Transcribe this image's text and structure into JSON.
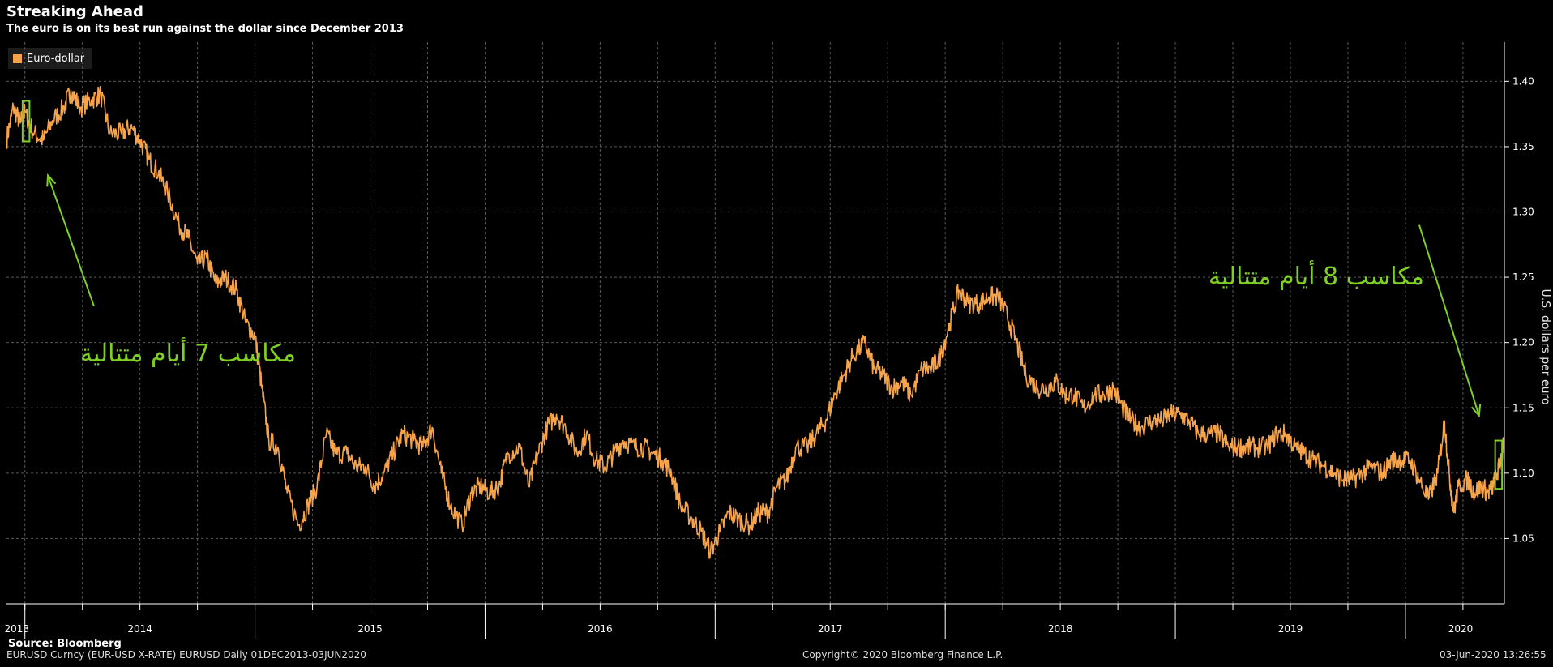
{
  "chart_data": {
    "type": "line",
    "title": "Streaking Ahead",
    "subtitle": "The euro is on its best run against the dollar since December 2013",
    "ylabel": "U.S. dollars per euro",
    "ylim": [
      1.0,
      1.43
    ],
    "yticks": [
      1.05,
      1.1,
      1.15,
      1.2,
      1.25,
      1.3,
      1.35,
      1.4
    ],
    "ytick_labels": [
      "1.05",
      "1.10",
      "1.15",
      "1.20",
      "1.25",
      "1.30",
      "1.35",
      "1.40"
    ],
    "xlim": [
      2013.92,
      2020.43
    ],
    "xlabels": [
      {
        "label": "2013",
        "x": 2013.965
      },
      {
        "label": "2014",
        "x": 2014.5
      },
      {
        "label": "2015",
        "x": 2015.5
      },
      {
        "label": "2016",
        "x": 2016.5
      },
      {
        "label": "2017",
        "x": 2017.5
      },
      {
        "label": "2018",
        "x": 2018.5
      },
      {
        "label": "2019",
        "x": 2019.5
      },
      {
        "label": "2020",
        "x": 2020.24
      }
    ],
    "year_boundaries": [
      2014.0,
      2015.0,
      2016.0,
      2017.0,
      2018.0,
      2019.0,
      2020.0
    ],
    "grid": true,
    "legend_position": "top-left",
    "colors": {
      "series": "#f7a34a",
      "annotation": "#7fcf25",
      "grid": "#5a5a5a"
    },
    "series": [
      {
        "name": "Euro-dollar",
        "points": [
          [
            2013.92,
            1.355
          ],
          [
            2013.95,
            1.38
          ],
          [
            2013.98,
            1.368
          ],
          [
            2014.0,
            1.376
          ],
          [
            2014.04,
            1.36
          ],
          [
            2014.08,
            1.355
          ],
          [
            2014.12,
            1.37
          ],
          [
            2014.17,
            1.38
          ],
          [
            2014.2,
            1.393
          ],
          [
            2014.24,
            1.38
          ],
          [
            2014.29,
            1.386
          ],
          [
            2014.33,
            1.39
          ],
          [
            2014.37,
            1.36
          ],
          [
            2014.42,
            1.36
          ],
          [
            2014.46,
            1.365
          ],
          [
            2014.5,
            1.355
          ],
          [
            2014.54,
            1.34
          ],
          [
            2014.58,
            1.33
          ],
          [
            2014.62,
            1.315
          ],
          [
            2014.67,
            1.29
          ],
          [
            2014.71,
            1.28
          ],
          [
            2014.75,
            1.26
          ],
          [
            2014.79,
            1.265
          ],
          [
            2014.83,
            1.245
          ],
          [
            2014.87,
            1.25
          ],
          [
            2014.92,
            1.24
          ],
          [
            2014.96,
            1.215
          ],
          [
            2015.0,
            1.205
          ],
          [
            2015.03,
            1.165
          ],
          [
            2015.06,
            1.125
          ],
          [
            2015.1,
            1.12
          ],
          [
            2015.14,
            1.085
          ],
          [
            2015.19,
            1.06
          ],
          [
            2015.23,
            1.075
          ],
          [
            2015.27,
            1.09
          ],
          [
            2015.31,
            1.13
          ],
          [
            2015.35,
            1.115
          ],
          [
            2015.4,
            1.115
          ],
          [
            2015.44,
            1.105
          ],
          [
            2015.48,
            1.105
          ],
          [
            2015.52,
            1.09
          ],
          [
            2015.56,
            1.1
          ],
          [
            2015.6,
            1.115
          ],
          [
            2015.64,
            1.13
          ],
          [
            2015.69,
            1.125
          ],
          [
            2015.73,
            1.12
          ],
          [
            2015.77,
            1.135
          ],
          [
            2015.81,
            1.1
          ],
          [
            2015.85,
            1.075
          ],
          [
            2015.9,
            1.06
          ],
          [
            2015.94,
            1.085
          ],
          [
            2015.98,
            1.09
          ],
          [
            2016.02,
            1.085
          ],
          [
            2016.06,
            1.09
          ],
          [
            2016.1,
            1.115
          ],
          [
            2016.15,
            1.12
          ],
          [
            2016.19,
            1.09
          ],
          [
            2016.23,
            1.115
          ],
          [
            2016.27,
            1.135
          ],
          [
            2016.31,
            1.145
          ],
          [
            2016.35,
            1.135
          ],
          [
            2016.4,
            1.115
          ],
          [
            2016.44,
            1.13
          ],
          [
            2016.48,
            1.11
          ],
          [
            2016.52,
            1.105
          ],
          [
            2016.56,
            1.115
          ],
          [
            2016.6,
            1.125
          ],
          [
            2016.65,
            1.12
          ],
          [
            2016.69,
            1.12
          ],
          [
            2016.73,
            1.115
          ],
          [
            2016.77,
            1.11
          ],
          [
            2016.81,
            1.1
          ],
          [
            2016.85,
            1.075
          ],
          [
            2016.9,
            1.065
          ],
          [
            2016.94,
            1.055
          ],
          [
            2016.98,
            1.04
          ],
          [
            2017.02,
            1.055
          ],
          [
            2017.06,
            1.07
          ],
          [
            2017.1,
            1.065
          ],
          [
            2017.15,
            1.06
          ],
          [
            2017.19,
            1.07
          ],
          [
            2017.23,
            1.07
          ],
          [
            2017.27,
            1.09
          ],
          [
            2017.31,
            1.095
          ],
          [
            2017.35,
            1.12
          ],
          [
            2017.4,
            1.12
          ],
          [
            2017.44,
            1.13
          ],
          [
            2017.48,
            1.14
          ],
          [
            2017.52,
            1.16
          ],
          [
            2017.56,
            1.175
          ],
          [
            2017.6,
            1.19
          ],
          [
            2017.65,
            1.2
          ],
          [
            2017.69,
            1.18
          ],
          [
            2017.73,
            1.175
          ],
          [
            2017.77,
            1.165
          ],
          [
            2017.81,
            1.17
          ],
          [
            2017.85,
            1.16
          ],
          [
            2017.9,
            1.18
          ],
          [
            2017.94,
            1.18
          ],
          [
            2017.98,
            1.19
          ],
          [
            2018.02,
            1.215
          ],
          [
            2018.06,
            1.24
          ],
          [
            2018.1,
            1.23
          ],
          [
            2018.15,
            1.23
          ],
          [
            2018.19,
            1.235
          ],
          [
            2018.23,
            1.235
          ],
          [
            2018.27,
            1.22
          ],
          [
            2018.31,
            1.2
          ],
          [
            2018.35,
            1.175
          ],
          [
            2018.4,
            1.165
          ],
          [
            2018.44,
            1.165
          ],
          [
            2018.48,
            1.17
          ],
          [
            2018.52,
            1.16
          ],
          [
            2018.56,
            1.16
          ],
          [
            2018.6,
            1.15
          ],
          [
            2018.65,
            1.16
          ],
          [
            2018.69,
            1.16
          ],
          [
            2018.73,
            1.165
          ],
          [
            2018.77,
            1.15
          ],
          [
            2018.81,
            1.14
          ],
          [
            2018.85,
            1.135
          ],
          [
            2018.9,
            1.14
          ],
          [
            2018.94,
            1.14
          ],
          [
            2018.98,
            1.145
          ],
          [
            2019.02,
            1.145
          ],
          [
            2019.06,
            1.14
          ],
          [
            2019.1,
            1.13
          ],
          [
            2019.15,
            1.13
          ],
          [
            2019.19,
            1.13
          ],
          [
            2019.23,
            1.12
          ],
          [
            2019.27,
            1.12
          ],
          [
            2019.31,
            1.12
          ],
          [
            2019.35,
            1.12
          ],
          [
            2019.4,
            1.12
          ],
          [
            2019.44,
            1.13
          ],
          [
            2019.48,
            1.13
          ],
          [
            2019.52,
            1.12
          ],
          [
            2019.56,
            1.115
          ],
          [
            2019.6,
            1.11
          ],
          [
            2019.65,
            1.105
          ],
          [
            2019.69,
            1.1
          ],
          [
            2019.73,
            1.095
          ],
          [
            2019.77,
            1.095
          ],
          [
            2019.81,
            1.1
          ],
          [
            2019.85,
            1.105
          ],
          [
            2019.9,
            1.1
          ],
          [
            2019.94,
            1.11
          ],
          [
            2019.98,
            1.11
          ],
          [
            2020.02,
            1.11
          ],
          [
            2020.06,
            1.095
          ],
          [
            2020.1,
            1.08
          ],
          [
            2020.14,
            1.1
          ],
          [
            2020.17,
            1.14
          ],
          [
            2020.19,
            1.1
          ],
          [
            2020.21,
            1.07
          ],
          [
            2020.23,
            1.09
          ],
          [
            2020.27,
            1.095
          ],
          [
            2020.3,
            1.085
          ],
          [
            2020.33,
            1.09
          ],
          [
            2020.36,
            1.085
          ],
          [
            2020.38,
            1.09
          ],
          [
            2020.4,
            1.1
          ],
          [
            2020.42,
            1.115
          ],
          [
            2020.425,
            1.12
          ]
        ]
      }
    ],
    "annotations": [
      {
        "text": "مكاسب 7 أيام متتالية",
        "box_x": [
          2013.99,
          2014.02
        ],
        "box_y": [
          1.354,
          1.385
        ],
        "arrow_from": [
          2014.3,
          1.228
        ],
        "arrow_to": [
          2014.1,
          1.328
        ]
      },
      {
        "text": "مكاسب 8 أيام متتالية",
        "box_x": [
          2020.39,
          2020.42
        ],
        "box_y": [
          1.088,
          1.125
        ],
        "arrow_from": [
          2020.06,
          1.29
        ],
        "arrow_to": [
          2020.32,
          1.144
        ]
      }
    ]
  },
  "legend": {
    "label": "Euro-dollar"
  },
  "footer": {
    "source": "Source: Bloomberg",
    "ticker": "EURUSD Curncy (EUR-USD X-RATE) EURUSD  Daily 01DEC2013-03JUN2020",
    "copyright": "Copyright© 2020 Bloomberg Finance L.P.",
    "timestamp": "03-Jun-2020 13:26:55"
  }
}
